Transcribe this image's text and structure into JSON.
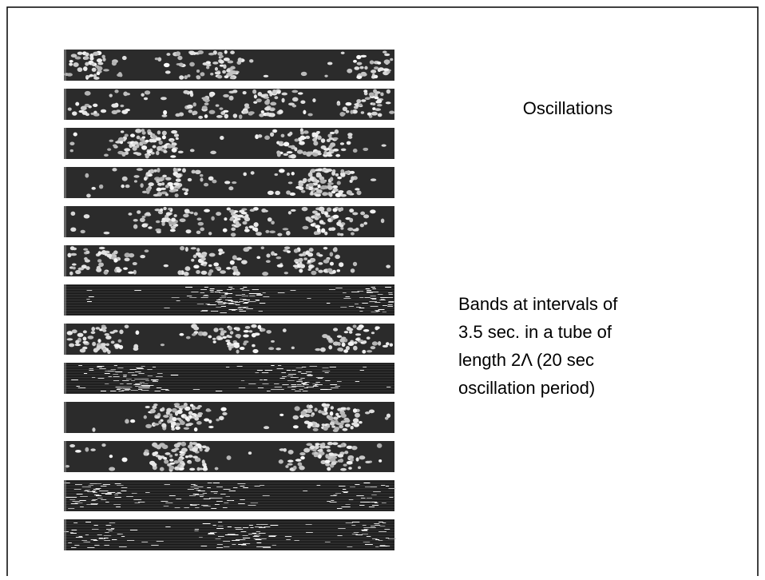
{
  "heading": "Oscillations",
  "description_lines": [
    "Bands at intervals of",
    "3.5 sec. in a tube of",
    "length 2Λ (20 sec",
    "oscillation period)"
  ]
}
